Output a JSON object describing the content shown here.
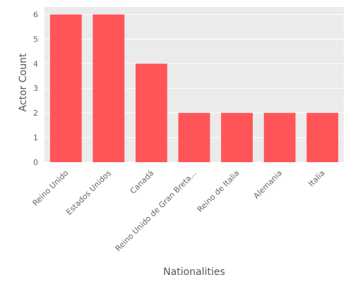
{
  "chart_data": {
    "type": "bar",
    "title": "",
    "xlabel": "Nationalities",
    "ylabel": "Actor Count",
    "categories": [
      "Reino Unido",
      "Estados Unidos",
      "Canadá",
      "Reino Unido de Gran Breta...",
      "Reino de Italia",
      "Alemania",
      "Italia"
    ],
    "values": [
      6,
      6,
      4,
      2,
      2,
      2,
      2
    ],
    "ylim": [
      0,
      6.3
    ],
    "yticks": [
      0,
      1,
      2,
      3,
      4,
      5,
      6
    ],
    "grid": true,
    "legend": "none",
    "colors": {
      "bar": "#ff5559",
      "plot_background": "#ebebeb",
      "grid": "#ffffff",
      "text": "#666666"
    }
  }
}
